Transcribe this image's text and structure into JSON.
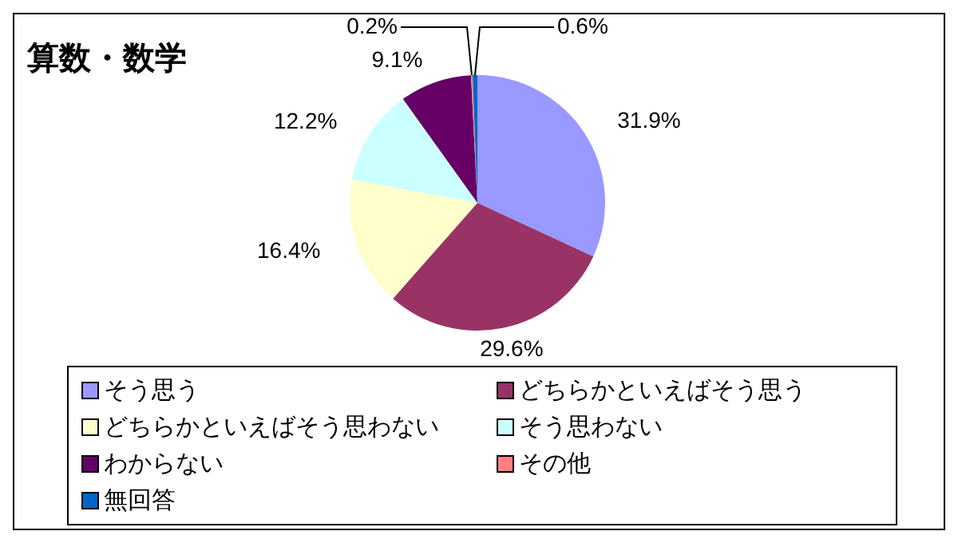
{
  "chart_data": {
    "type": "pie",
    "title": "算数・数学",
    "categories": [
      "そう思う",
      "どちらかといえばそう思う",
      "どちらかといえばそう思わない",
      "そう思わない",
      "わからない",
      "その他",
      "無回答"
    ],
    "values": [
      31.9,
      29.6,
      16.4,
      12.2,
      9.1,
      0.2,
      0.6
    ],
    "value_labels": [
      "31.9%",
      "29.6%",
      "16.4%",
      "12.2%",
      "9.1%",
      "0.2%",
      "0.6%"
    ],
    "colors": [
      "#9999ff",
      "#993366",
      "#ffffcc",
      "#ccffff",
      "#660066",
      "#ff8080",
      "#0066cc"
    ],
    "legend": "bottom"
  }
}
